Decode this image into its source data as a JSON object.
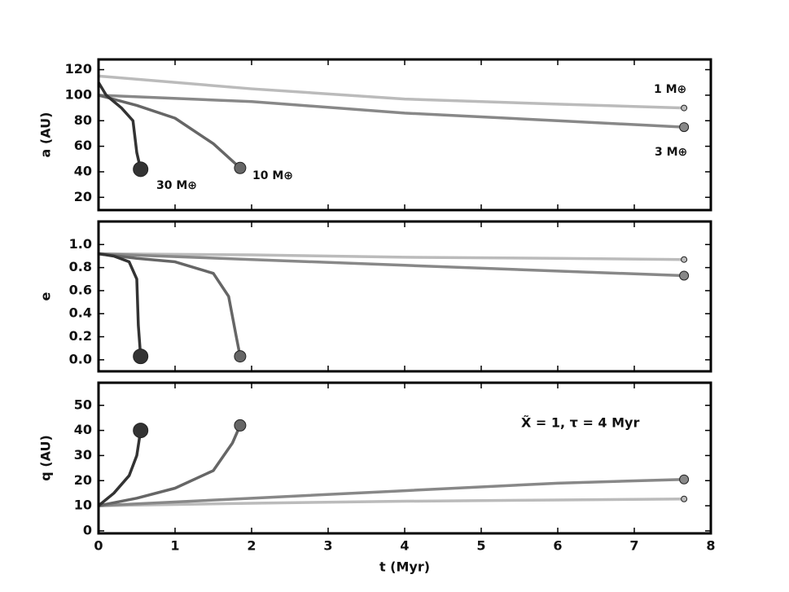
{
  "chart_data": [
    {
      "type": "line",
      "ylabel": "a (AU)",
      "xlim": [
        0,
        8
      ],
      "xticks": [
        0,
        1,
        2,
        3,
        4,
        5,
        6,
        7,
        8
      ],
      "ylim": [
        10,
        128
      ],
      "yticks": [
        20,
        40,
        60,
        80,
        100,
        120
      ],
      "series": [
        {
          "name": "30 M⊕",
          "color": "#333333",
          "x": [
            0,
            0.1,
            0.3,
            0.45,
            0.5,
            0.55
          ],
          "values": [
            110,
            100,
            90,
            80,
            55,
            42
          ]
        },
        {
          "name": "10 M⊕",
          "color": "#666666",
          "x": [
            0,
            0.5,
            1.0,
            1.5,
            1.85
          ],
          "values": [
            100,
            92,
            82,
            62,
            43
          ]
        },
        {
          "name": "3 M⊕",
          "color": "#888888",
          "x": [
            0,
            2,
            4,
            6,
            7.65
          ],
          "values": [
            100,
            95,
            86,
            80,
            75
          ]
        },
        {
          "name": "1 M⊕",
          "color": "#bbbbbb",
          "x": [
            0,
            2,
            4,
            6,
            7.65
          ],
          "values": [
            115,
            105,
            97,
            93,
            90
          ]
        }
      ]
    },
    {
      "type": "line",
      "ylabel": "e",
      "xlim": [
        0,
        8
      ],
      "xticks": [
        0,
        1,
        2,
        3,
        4,
        5,
        6,
        7,
        8
      ],
      "ylim": [
        -0.1,
        1.2
      ],
      "yticks": [
        {
          "value": 0,
          "label": "0.0"
        },
        0.2,
        0.4,
        0.6,
        0.8,
        {
          "value": 1,
          "label": "1.0"
        }
      ],
      "series": [
        {
          "color": "#333333",
          "x": [
            0,
            0.2,
            0.4,
            0.5,
            0.52,
            0.55
          ],
          "values": [
            0.92,
            0.9,
            0.85,
            0.7,
            0.3,
            0.03
          ]
        },
        {
          "color": "#666666",
          "x": [
            0,
            0.5,
            1,
            1.5,
            1.7,
            1.8,
            1.85
          ],
          "values": [
            0.92,
            0.88,
            0.85,
            0.75,
            0.55,
            0.2,
            0.03
          ]
        },
        {
          "color": "#888888",
          "x": [
            0,
            2,
            4,
            6,
            7.65
          ],
          "values": [
            0.92,
            0.87,
            0.82,
            0.77,
            0.73
          ]
        },
        {
          "color": "#bbbbbb",
          "x": [
            0,
            2,
            4,
            6,
            7.65
          ],
          "values": [
            0.92,
            0.91,
            0.89,
            0.88,
            0.87
          ]
        }
      ]
    },
    {
      "type": "line",
      "ylabel": "q (AU)",
      "xlabel": "t (Myr)",
      "annotation": "X̃ = 1, τ = 4 Myr",
      "xlim": [
        0,
        8
      ],
      "xticks": [
        0,
        1,
        2,
        3,
        4,
        5,
        6,
        7,
        8
      ],
      "ylim": [
        -1,
        59
      ],
      "yticks": [
        0,
        10,
        20,
        30,
        40,
        50
      ],
      "series": [
        {
          "color": "#333333",
          "x": [
            0,
            0.2,
            0.4,
            0.5,
            0.55
          ],
          "values": [
            10,
            15,
            22,
            30,
            40
          ]
        },
        {
          "color": "#666666",
          "x": [
            0,
            0.5,
            1,
            1.5,
            1.75,
            1.85
          ],
          "values": [
            10,
            13,
            17,
            24,
            35,
            42
          ]
        },
        {
          "color": "#888888",
          "x": [
            0,
            2,
            4,
            6,
            7.65
          ],
          "values": [
            10,
            13,
            16,
            19,
            20.5
          ]
        },
        {
          "color": "#bbbbbb",
          "x": [
            0,
            2,
            4,
            6,
            7.65
          ],
          "values": [
            10,
            11,
            11.8,
            12.3,
            12.7
          ]
        }
      ]
    }
  ]
}
